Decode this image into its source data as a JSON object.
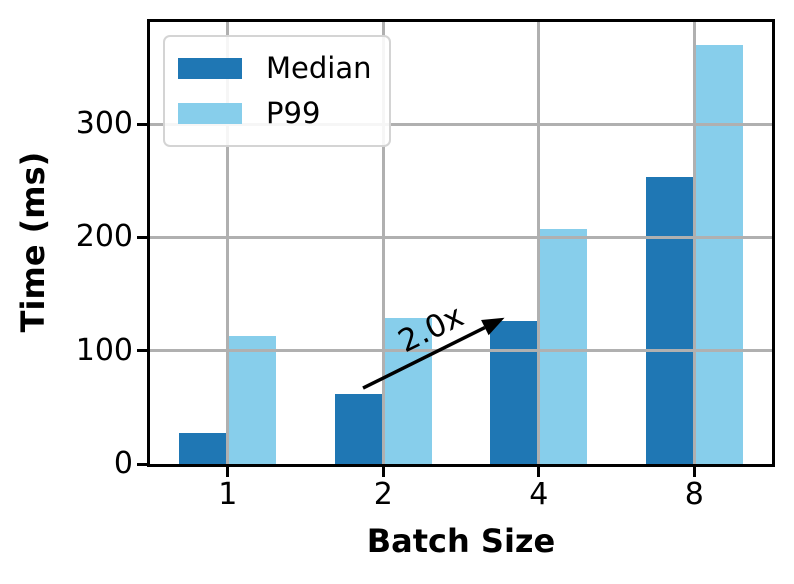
{
  "chart_data": {
    "type": "bar",
    "title": "",
    "xlabel": "Batch Size",
    "ylabel": "Time (ms)",
    "categories": [
      "1",
      "2",
      "4",
      "8"
    ],
    "series": [
      {
        "name": "Median",
        "color": "#1f77b4",
        "values": [
          27,
          62,
          126,
          253
        ]
      },
      {
        "name": "P99",
        "color": "#87ceeb",
        "values": [
          113,
          129,
          207,
          370
        ]
      }
    ],
    "ylim": [
      0,
      390
    ],
    "yticks": [
      0,
      100,
      200,
      300
    ],
    "ytick_labels": [
      "0",
      "100",
      "200",
      "300"
    ],
    "grid": true,
    "grid_color": "#b0b0b0",
    "grid_above_bars": true,
    "axis_color": "#000000",
    "legend": {
      "position": "upper left"
    },
    "annotation": {
      "text": "2.0x",
      "rotation_deg": -26,
      "color": "#000000",
      "text_pos": {
        "x_index": 1.31,
        "y": 119
      },
      "arrow": {
        "x1_index": 0.87,
        "y1": 67,
        "x2_index": 1.78,
        "y2": 129
      }
    }
  }
}
